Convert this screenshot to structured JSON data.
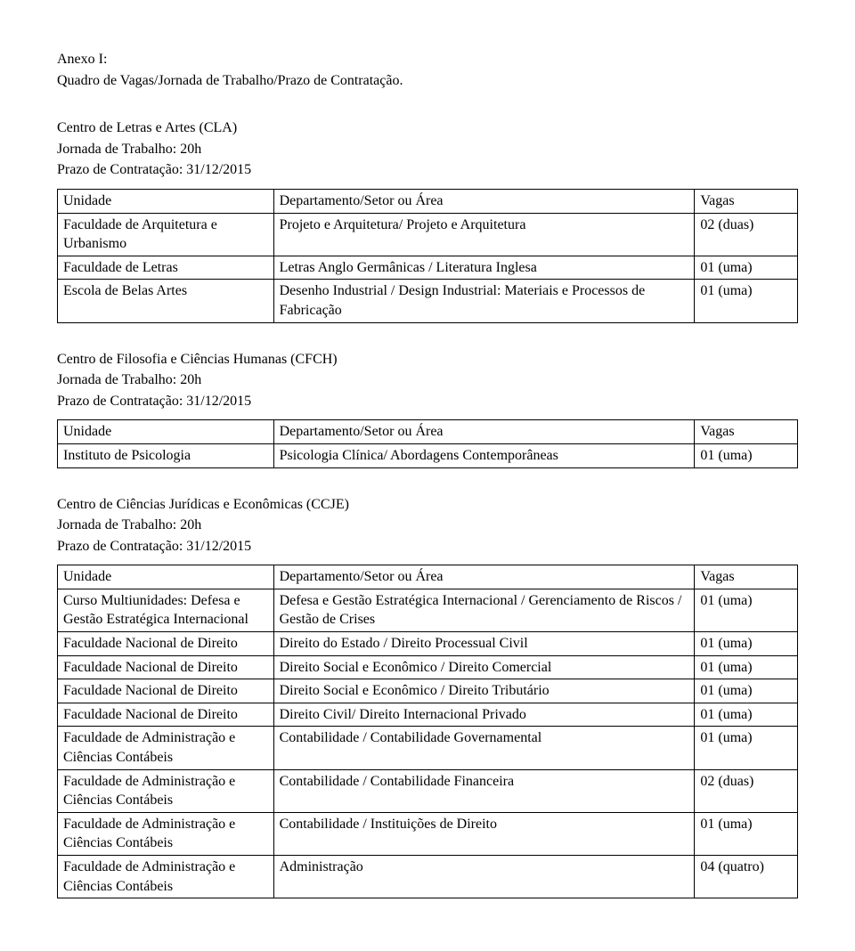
{
  "header": {
    "line1": "Anexo I:",
    "line2": "Quadro de Vagas/Jornada de Trabalho/Prazo de Contratação."
  },
  "common": {
    "col_unidade": "Unidade",
    "col_depto": "Departamento/Setor ou Área",
    "col_vagas": "Vagas",
    "jornada": "Jornada de Trabalho: 20h",
    "prazo": "Prazo de Contratação: 31/12/2015"
  },
  "sections": [
    {
      "title": "Centro de Letras e Artes (CLA)",
      "rows": [
        {
          "unidade": "Faculdade de Arquitetura e Urbanismo",
          "depto": "Projeto e Arquitetura/ Projeto e Arquitetura",
          "vagas": "02 (duas)"
        },
        {
          "unidade": "Faculdade de Letras",
          "depto": "Letras Anglo Germânicas /  Literatura Inglesa",
          "vagas": "01 (uma)"
        },
        {
          "unidade": "Escola de Belas Artes",
          "depto": "Desenho Industrial / Design Industrial: Materiais e Processos de Fabricação",
          "vagas": "01 (uma)"
        }
      ]
    },
    {
      "title": "Centro de Filosofia e Ciências Humanas (CFCH)",
      "rows": [
        {
          "unidade": "Instituto de Psicologia",
          "depto": "Psicologia Clínica/ Abordagens Contemporâneas",
          "vagas": "01 (uma)"
        }
      ]
    },
    {
      "title": "Centro de Ciências Jurídicas e Econômicas (CCJE)",
      "rows": [
        {
          "unidade": "Curso Multiunidades: Defesa e Gestão Estratégica Internacional",
          "depto": "Defesa e Gestão Estratégica Internacional / Gerenciamento de Riscos / Gestão de Crises",
          "vagas": "01 (uma)"
        },
        {
          "unidade": "Faculdade Nacional de Direito",
          "depto": "Direito do Estado / Direito Processual Civil",
          "vagas": "01 (uma)"
        },
        {
          "unidade": "Faculdade Nacional de Direito",
          "depto": "Direito Social e Econômico / Direito Comercial",
          "vagas": "01 (uma)"
        },
        {
          "unidade": "Faculdade Nacional de Direito",
          "depto": "Direito Social e Econômico / Direito Tributário",
          "vagas": "01 (uma)"
        },
        {
          "unidade": "Faculdade Nacional de Direito",
          "depto": "Direito Civil/ Direito Internacional Privado",
          "vagas": "01 (uma)"
        },
        {
          "unidade": "Faculdade de Administração e Ciências Contábeis",
          "depto": "Contabilidade / Contabilidade Governamental",
          "vagas": "01 (uma)"
        },
        {
          "unidade": "Faculdade de Administração e Ciências Contábeis",
          "depto": "Contabilidade / Contabilidade Financeira",
          "vagas": "02 (duas)"
        },
        {
          "unidade": "Faculdade de Administração e Ciências Contábeis",
          "depto": "Contabilidade / Instituições de Direito",
          "vagas": "01 (uma)"
        },
        {
          "unidade": "Faculdade de Administração e Ciências Contábeis",
          "depto": "Administração",
          "vagas": "04 (quatro)"
        }
      ]
    }
  ]
}
